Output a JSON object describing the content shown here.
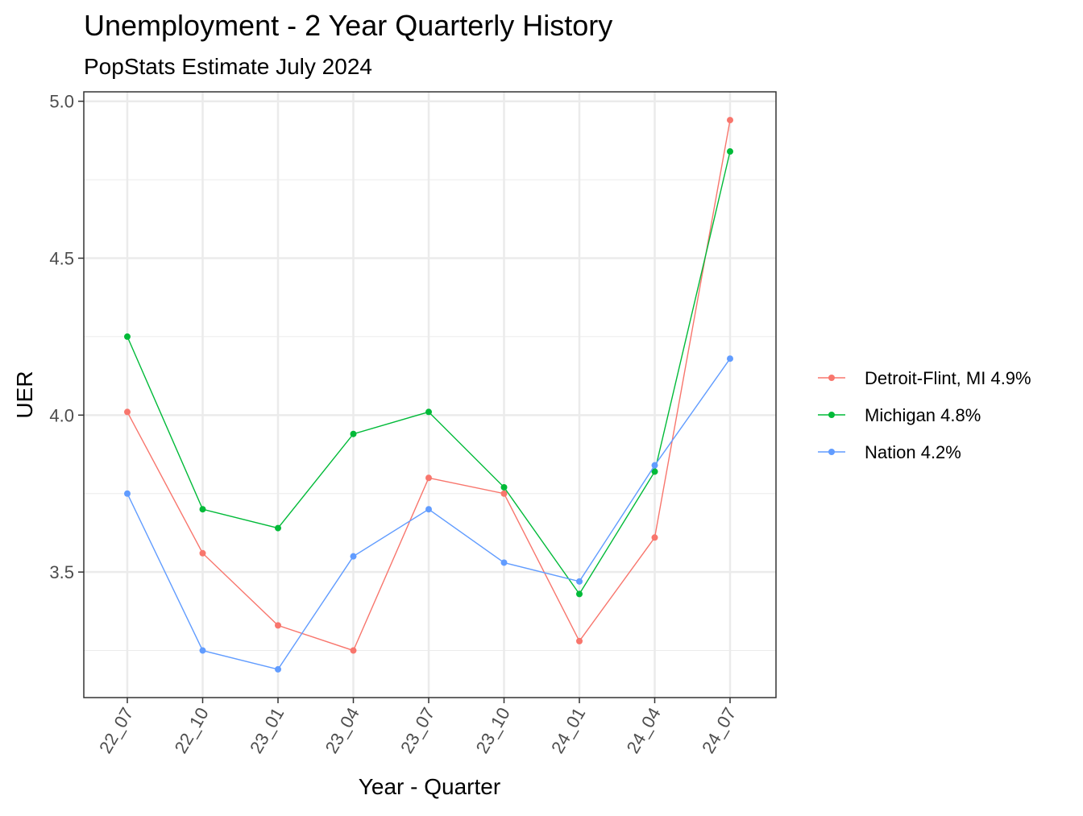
{
  "chart_data": {
    "type": "line",
    "title": "Unemployment - 2 Year Quarterly History",
    "subtitle": "PopStats Estimate July 2024",
    "xlabel": "Year - Quarter",
    "ylabel": "UER",
    "categories": [
      "22_07",
      "22_10",
      "23_01",
      "23_04",
      "23_07",
      "23_10",
      "24_01",
      "24_04",
      "24_07"
    ],
    "ylim": [
      3.1,
      5.03
    ],
    "yticks": [
      3.5,
      4.0,
      4.5,
      5.0
    ],
    "ytick_labels": [
      "3.5",
      "4.0",
      "4.5",
      "5.0"
    ],
    "grid": true,
    "legend_position": "right",
    "series": [
      {
        "name": "Detroit-Flint, MI 4.9%",
        "color": "#F8766D",
        "values": [
          4.01,
          3.56,
          3.33,
          3.25,
          3.8,
          3.75,
          3.28,
          3.61,
          4.94
        ]
      },
      {
        "name": "Michigan 4.8%",
        "color": "#00BA38",
        "values": [
          4.25,
          3.7,
          3.64,
          3.94,
          4.01,
          3.77,
          3.43,
          3.82,
          4.84
        ]
      },
      {
        "name": "Nation 4.2%",
        "color": "#619CFF",
        "values": [
          3.75,
          3.25,
          3.19,
          3.55,
          3.7,
          3.53,
          3.47,
          3.84,
          4.18
        ]
      }
    ]
  }
}
